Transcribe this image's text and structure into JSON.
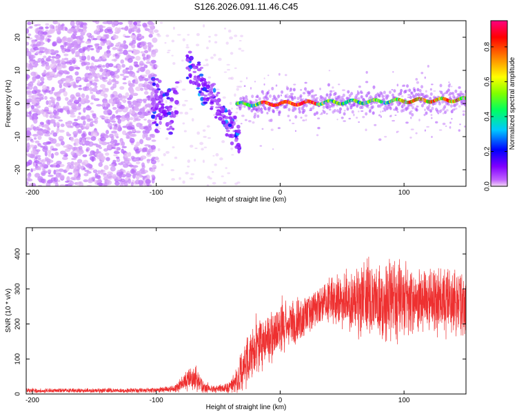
{
  "title": "S126.2026.091.11.46.C45",
  "chart_data": [
    {
      "type": "heatmap",
      "title": "",
      "xlabel": "Height of straight line (km)",
      "ylabel": "Frequency (Hz)",
      "xlim": [
        -205,
        150
      ],
      "ylim": [
        -25,
        25
      ],
      "xticks": [
        -200,
        -100,
        0,
        100
      ],
      "xtick_labels": [
        "-200",
        "-100",
        "0",
        "100"
      ],
      "yticks": [
        -20,
        -10,
        0,
        10,
        20
      ],
      "ytick_labels": [
        "-20",
        "-10",
        "0",
        "10",
        "20"
      ],
      "colorbar": {
        "label": "Normalized spectral amplitude",
        "range": [
          0,
          0.95
        ],
        "ticks": [
          0,
          0.2,
          0.4,
          0.6,
          0.8
        ],
        "tick_labels": [
          "0.0",
          "0.2",
          "0.4",
          "0.6",
          "0.8"
        ],
        "colormap": [
          "#f2d8f5",
          "#8000ff",
          "#0000ff",
          "#00c8ff",
          "#00ff00",
          "#ffff00",
          "#ff8000",
          "#ff0000",
          "#ff0080"
        ]
      },
      "features": [
        {
          "name": "broadband noise",
          "x_range": [
            -205,
            -100
          ],
          "freq_range": [
            -25,
            25
          ],
          "level": 0.05
        },
        {
          "name": "signal track",
          "x_range": [
            -35,
            150
          ],
          "freq_center": [
            0,
            1
          ],
          "level": 0.9
        },
        {
          "name": "descending chirp",
          "x_range": [
            -75,
            -30
          ],
          "freq_range": [
            12,
            -14
          ],
          "level": 0.3
        }
      ]
    },
    {
      "type": "line",
      "title": "",
      "xlabel": "Height of straight line (km)",
      "ylabel": "SNR (10 * v/v)",
      "xlim": [
        -205,
        150
      ],
      "ylim": [
        0,
        475
      ],
      "xticks": [
        -200,
        -100,
        0,
        100
      ],
      "xtick_labels": [
        "-200",
        "-100",
        "0",
        "100"
      ],
      "yticks": [
        0,
        100,
        200,
        300,
        400
      ],
      "ytick_labels": [
        "0",
        "100",
        "200",
        "300",
        "400"
      ],
      "series": [
        {
          "name": "SNR",
          "color": "#ee3030",
          "envelope": {
            "x": [
              -205,
              -110,
              -85,
              -75,
              -68,
              -62,
              -50,
              -40,
              -33,
              -25,
              -15,
              -5,
              0,
              10,
              20,
              30,
              40,
              60,
              80,
              100,
              120,
              150
            ],
            "mean": [
              10,
              10,
              14,
              40,
              45,
              20,
              14,
              20,
              50,
              110,
              150,
              175,
              185,
              205,
              225,
              245,
              270,
              270,
              270,
              268,
              265,
              262
            ],
            "amp": [
              5,
              5,
              8,
              22,
              28,
              12,
              8,
              14,
              45,
              60,
              60,
              60,
              55,
              55,
              50,
              45,
              55,
              75,
              95,
              85,
              75,
              70
            ]
          }
        }
      ]
    }
  ]
}
